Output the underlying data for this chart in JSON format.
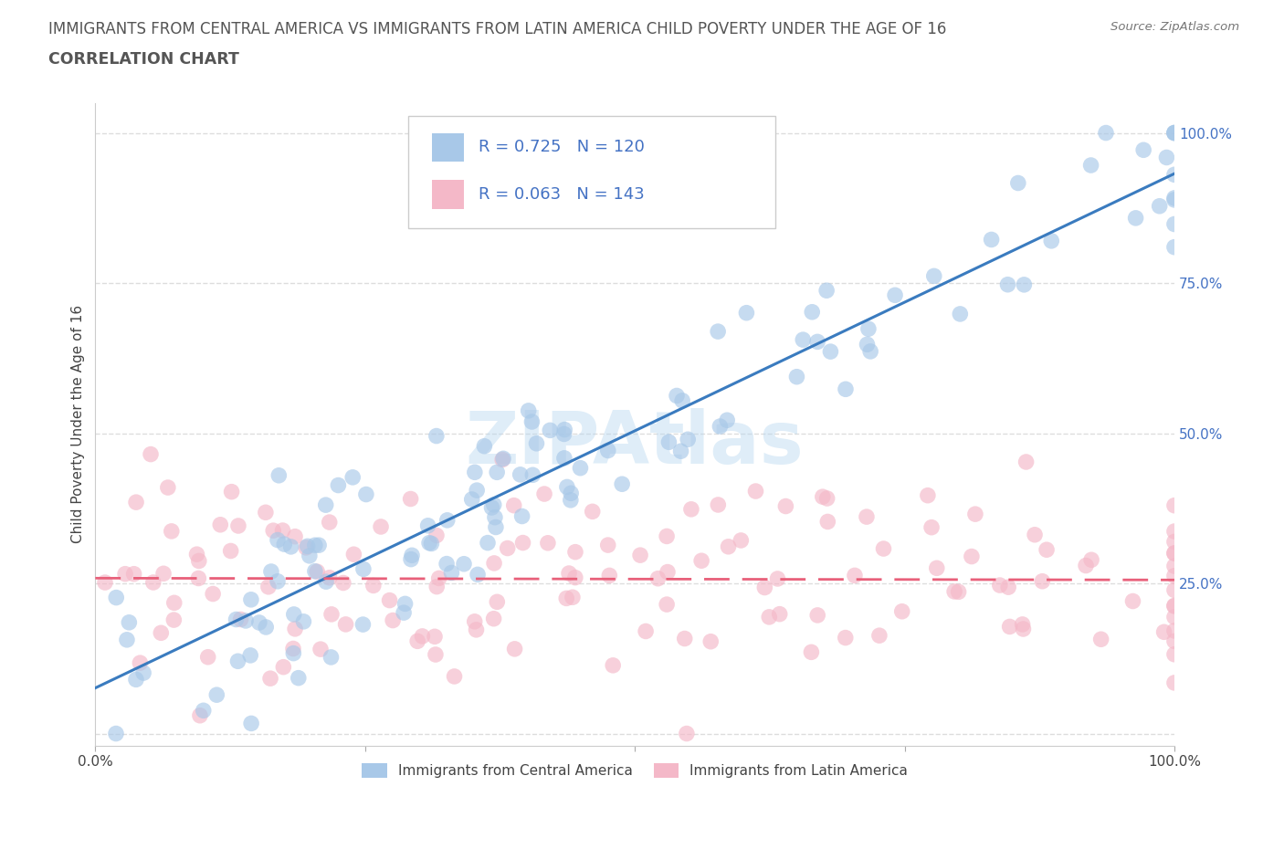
{
  "title": "IMMIGRANTS FROM CENTRAL AMERICA VS IMMIGRANTS FROM LATIN AMERICA CHILD POVERTY UNDER THE AGE OF 16",
  "subtitle": "CORRELATION CHART",
  "source": "Source: ZipAtlas.com",
  "ylabel": "Child Poverty Under the Age of 16",
  "xlim": [
    0.0,
    1.0
  ],
  "ylim": [
    -0.02,
    1.05
  ],
  "blue_R": 0.725,
  "blue_N": 120,
  "pink_R": 0.063,
  "pink_N": 143,
  "blue_color": "#a8c8e8",
  "pink_color": "#f4b8c8",
  "blue_line_color": "#3a7bbf",
  "pink_line_color": "#e8607a",
  "legend_blue_label": "Immigrants from Central America",
  "legend_pink_label": "Immigrants from Latin America",
  "background_color": "#ffffff",
  "grid_color": "#dddddd",
  "title_color": "#555555",
  "blue_seed": 10,
  "pink_seed": 20
}
